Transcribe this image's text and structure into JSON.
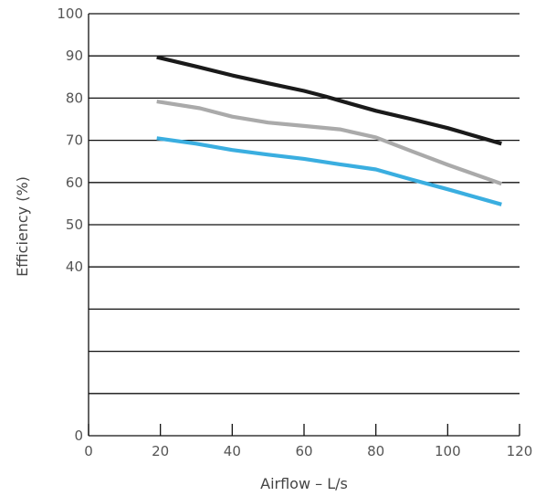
{
  "chart_data": {
    "type": "line",
    "title": "",
    "xlabel": "Airflow – L/s",
    "ylabel": "Efficiency (%)",
    "xlim": [
      0,
      120
    ],
    "ylim": [
      0,
      100
    ],
    "x_ticks": [
      0,
      20,
      40,
      60,
      80,
      100,
      120
    ],
    "y_ticks": [
      0,
      10,
      20,
      30,
      40,
      50,
      60,
      70,
      80,
      90,
      100
    ],
    "y_tick_labels": [
      "0",
      "",
      "",
      "",
      "40",
      "50",
      "60",
      "70",
      "80",
      "90",
      "100"
    ],
    "grid": "horizontal",
    "legend": "none",
    "series": [
      {
        "color": "#1a1a1a",
        "points": [
          [
            19,
            89.7
          ],
          [
            30,
            87.5
          ],
          [
            40,
            85.4
          ],
          [
            50,
            83.5
          ],
          [
            60,
            81.7
          ],
          [
            66,
            80.4
          ],
          [
            70,
            79.4
          ],
          [
            80,
            77.0
          ],
          [
            90,
            75.0
          ],
          [
            100,
            72.9
          ],
          [
            115,
            69.2
          ]
        ]
      },
      {
        "color": "#aaaaaa",
        "points": [
          [
            19,
            79.2
          ],
          [
            31,
            77.6
          ],
          [
            40,
            75.6
          ],
          [
            50,
            74.2
          ],
          [
            60,
            73.4
          ],
          [
            70,
            72.6
          ],
          [
            80,
            70.7
          ],
          [
            90,
            67.4
          ],
          [
            100,
            64.2
          ],
          [
            115,
            59.7
          ]
        ]
      },
      {
        "color": "#3aaee0",
        "points": [
          [
            19,
            70.5
          ],
          [
            30,
            69.2
          ],
          [
            40,
            67.7
          ],
          [
            50,
            66.6
          ],
          [
            60,
            65.6
          ],
          [
            70,
            64.3
          ],
          [
            80,
            63.1
          ],
          [
            90,
            60.7
          ],
          [
            100,
            58.4
          ],
          [
            115,
            54.8
          ]
        ]
      }
    ]
  }
}
